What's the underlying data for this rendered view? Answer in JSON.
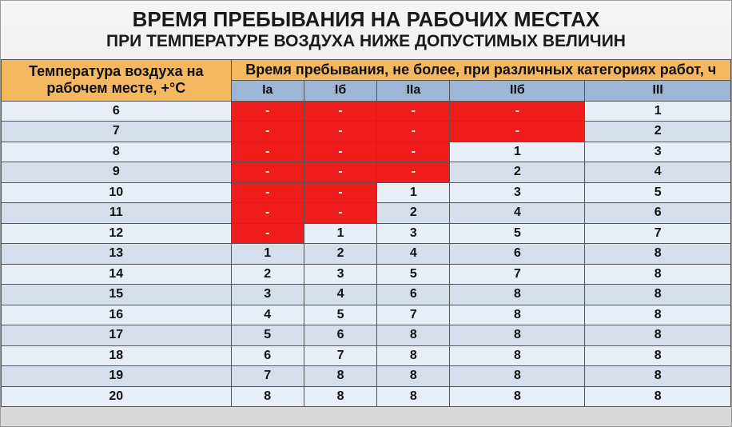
{
  "title": {
    "line1": "ВРЕМЯ ПРЕБЫВАНИЯ НА РАБОЧИХ МЕСТАХ",
    "line2": "ПРИ ТЕМПЕРАТУРЕ ВОЗДУХА НИЖЕ ДОПУСТИМЫХ ВЕЛИЧИН",
    "line1_fontsize": 26,
    "line2_fontsize": 21
  },
  "table": {
    "header_left": "Температура воздуха на рабочем месте, +°С",
    "header_right": "Время пребывания, не более, при различных категориях работ, ч",
    "categories": [
      "Iа",
      "Iб",
      "IIа",
      "IIб",
      "III"
    ],
    "col_widths_pct": [
      31.5,
      10,
      10,
      10,
      18.5,
      20
    ],
    "header_bg": "#f4b860",
    "subheader_bg": "#9db6d6",
    "row_light_bg": "#e8eef6",
    "row_dark_bg": "#d5dfec",
    "red_bg": "#ef1c1c",
    "border_color": "#555",
    "header_fontsize": 18,
    "subheader_fontsize": 16,
    "body_fontsize": 16,
    "row_height": 25.5,
    "rows": [
      {
        "temp": "6",
        "vals": [
          "-",
          "-",
          "-",
          "-",
          "1"
        ],
        "red": [
          1,
          1,
          1,
          1,
          0
        ]
      },
      {
        "temp": "7",
        "vals": [
          "-",
          "-",
          "-",
          "-",
          "2"
        ],
        "red": [
          1,
          1,
          1,
          1,
          0
        ]
      },
      {
        "temp": "8",
        "vals": [
          "-",
          "-",
          "-",
          "1",
          "3"
        ],
        "red": [
          1,
          1,
          1,
          0,
          0
        ]
      },
      {
        "temp": "9",
        "vals": [
          "-",
          "-",
          "-",
          "2",
          "4"
        ],
        "red": [
          1,
          1,
          1,
          0,
          0
        ]
      },
      {
        "temp": "10",
        "vals": [
          "-",
          "-",
          "1",
          "3",
          "5"
        ],
        "red": [
          1,
          1,
          0,
          0,
          0
        ]
      },
      {
        "temp": "11",
        "vals": [
          "-",
          "-",
          "2",
          "4",
          "6"
        ],
        "red": [
          1,
          1,
          0,
          0,
          0
        ]
      },
      {
        "temp": "12",
        "vals": [
          "-",
          "1",
          "3",
          "5",
          "7"
        ],
        "red": [
          1,
          0,
          0,
          0,
          0
        ]
      },
      {
        "temp": "13",
        "vals": [
          "1",
          "2",
          "4",
          "6",
          "8"
        ],
        "red": [
          0,
          0,
          0,
          0,
          0
        ]
      },
      {
        "temp": "14",
        "vals": [
          "2",
          "3",
          "5",
          "7",
          "8"
        ],
        "red": [
          0,
          0,
          0,
          0,
          0
        ]
      },
      {
        "temp": "15",
        "vals": [
          "3",
          "4",
          "6",
          "8",
          "8"
        ],
        "red": [
          0,
          0,
          0,
          0,
          0
        ]
      },
      {
        "temp": "16",
        "vals": [
          "4",
          "5",
          "7",
          "8",
          "8"
        ],
        "red": [
          0,
          0,
          0,
          0,
          0
        ]
      },
      {
        "temp": "17",
        "vals": [
          "5",
          "6",
          "8",
          "8",
          "8"
        ],
        "red": [
          0,
          0,
          0,
          0,
          0
        ]
      },
      {
        "temp": "18",
        "vals": [
          "6",
          "7",
          "8",
          "8",
          "8"
        ],
        "red": [
          0,
          0,
          0,
          0,
          0
        ]
      },
      {
        "temp": "19",
        "vals": [
          "7",
          "8",
          "8",
          "8",
          "8"
        ],
        "red": [
          0,
          0,
          0,
          0,
          0
        ]
      },
      {
        "temp": "20",
        "vals": [
          "8",
          "8",
          "8",
          "8",
          "8"
        ],
        "red": [
          0,
          0,
          0,
          0,
          0
        ]
      }
    ]
  }
}
